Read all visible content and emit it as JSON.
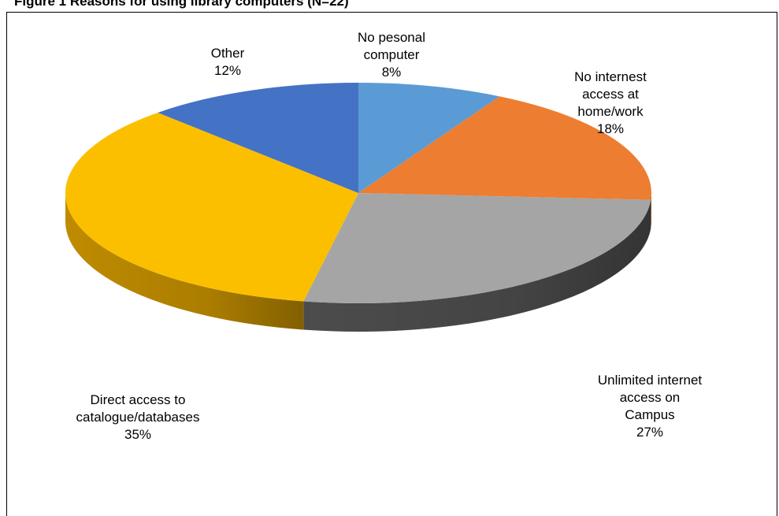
{
  "figure_title": "Figure 1 Reasons for using library computers (N=22)",
  "chart_data": {
    "type": "pie",
    "title": "Figure 1 Reasons for using library computers (N=22)",
    "style": "3d",
    "slices": [
      {
        "name": "No pesonal computer",
        "label_lines": [
          "No pesonal",
          "computer"
        ],
        "pct_label": "8%",
        "value": 8,
        "color": "#5b9bd5",
        "side": "#3f78ad"
      },
      {
        "name": "No internest access at home/work",
        "label_lines": [
          "No internest",
          "access at",
          "home/work"
        ],
        "pct_label": "18%",
        "value": 18,
        "color": "#ed7d31",
        "side": "#b95a1c"
      },
      {
        "name": "Unlimited internet access on Campus",
        "label_lines": [
          "Unlimited internet",
          "access on",
          "Campus"
        ],
        "pct_label": "27%",
        "value": 27,
        "color": "#a5a5a5",
        "side": "#505050"
      },
      {
        "name": "Direct access to catalogue/databases",
        "label_lines": [
          "Direct access to",
          "catalogue/databases"
        ],
        "pct_label": "35%",
        "value": 35,
        "color": "#fbbf00",
        "side": "#c99300"
      },
      {
        "name": "Other",
        "label_lines": [
          "Other"
        ],
        "pct_label": "12%",
        "value": 12,
        "color": "#4472c4",
        "side": "#2f5597"
      }
    ]
  }
}
